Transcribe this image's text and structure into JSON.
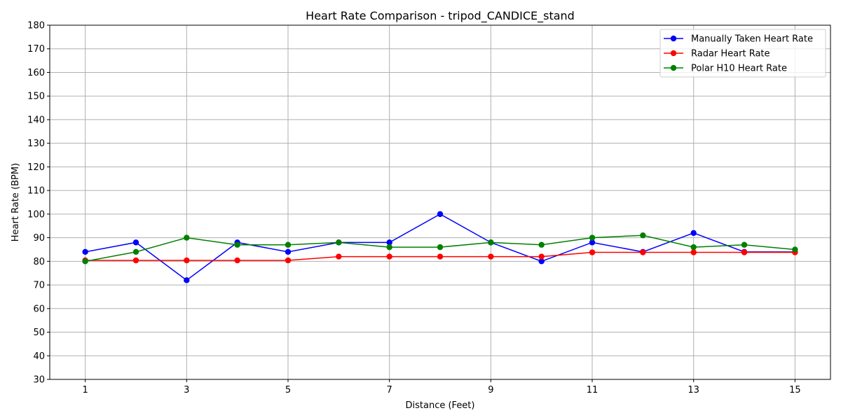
{
  "chart_data": {
    "type": "line",
    "title": "Heart Rate Comparison - tripod_CANDICE_stand",
    "xlabel": "Distance (Feet)",
    "ylabel": "Heart Rate (BPM)",
    "xlim": [
      0.3,
      15.7
    ],
    "ylim": [
      30,
      180
    ],
    "x_ticks": [
      1,
      3,
      5,
      7,
      9,
      11,
      13,
      15
    ],
    "y_ticks": [
      30,
      40,
      50,
      60,
      70,
      80,
      90,
      100,
      110,
      120,
      130,
      140,
      150,
      160,
      170,
      180
    ],
    "grid": true,
    "legend_position": "top-right",
    "x": [
      1,
      2,
      3,
      4,
      5,
      6,
      7,
      8,
      9,
      10,
      11,
      12,
      13,
      14,
      15
    ],
    "series": [
      {
        "name": "Manually Taken Heart Rate",
        "color": "#0000ff",
        "marker": "circle",
        "values": [
          84,
          88,
          72,
          88,
          84,
          88,
          88,
          100,
          88,
          80,
          88,
          84,
          92,
          84,
          84
        ]
      },
      {
        "name": "Radar Heart Rate",
        "color": "#ff0000",
        "marker": "circle",
        "values": [
          80.4,
          80.4,
          80.4,
          80.4,
          80.4,
          82,
          82,
          82,
          82,
          82,
          83.8,
          83.8,
          83.8,
          83.8,
          83.8
        ]
      },
      {
        "name": "Polar H10 Heart Rate",
        "color": "#008000",
        "marker": "circle",
        "values": [
          80,
          84,
          90,
          87,
          87,
          88,
          86,
          86,
          88,
          87,
          90,
          91,
          86,
          87,
          85
        ]
      }
    ]
  }
}
